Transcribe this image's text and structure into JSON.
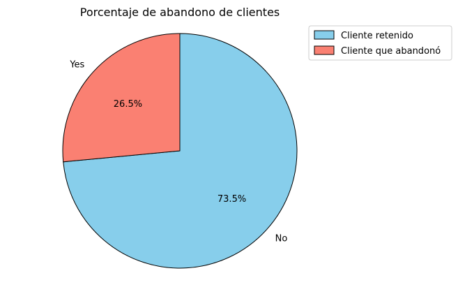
{
  "chart_data": {
    "type": "pie",
    "title": "Porcentaje de abandono de clientes",
    "slices": [
      {
        "label": "No",
        "value": 73.5,
        "pct_label": "73.5%",
        "legend": "Cliente retenido",
        "color": "#87CEEB"
      },
      {
        "label": "Yes",
        "value": 26.5,
        "pct_label": "26.5%",
        "legend": "Cliente que abandonó",
        "color": "#FA8072"
      }
    ],
    "start_angle_deg": 90,
    "direction": "clockwise",
    "legend_position": "top-right"
  }
}
